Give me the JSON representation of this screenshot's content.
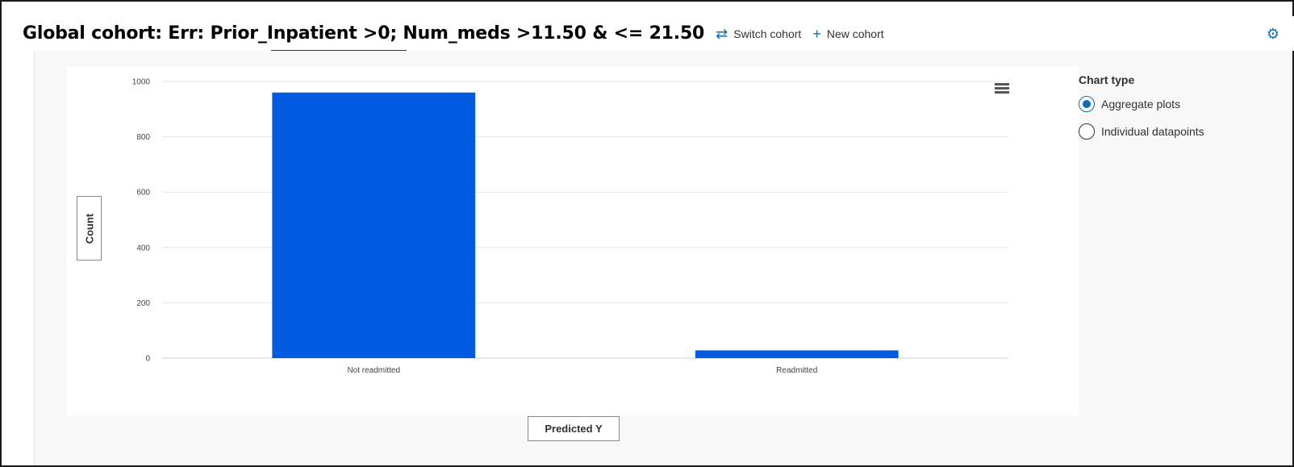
{
  "header": {
    "cohort_title": "Global cohort: Err: Prior_Inpatient >0; Num_meds >11.50 & <= 21.50",
    "switch_cohort_label": "Switch cohort",
    "new_cohort_label": "New cohort",
    "switch_icon": "swap-arrows-icon",
    "new_icon": "plus-icon",
    "settings_icon": "gear-icon"
  },
  "side_panel": {
    "title": "Chart type",
    "options": [
      {
        "label": "Aggregate plots",
        "selected": true
      },
      {
        "label": "Individual datapoints",
        "selected": false
      }
    ]
  },
  "axes": {
    "y_button_label": "Count",
    "x_button_label": "Predicted Y"
  },
  "colors": {
    "bar": "#005be0",
    "accent": "#0f6cbd",
    "grid": "#e6e6e6"
  },
  "chart_data": {
    "type": "bar",
    "categories": [
      "Not readmitted",
      "Readmitted"
    ],
    "values": [
      960,
      28
    ],
    "ylim": [
      0,
      1000
    ],
    "yticks": [
      0,
      200,
      400,
      600,
      800,
      1000
    ],
    "xlabel": "Predicted Y",
    "ylabel": "Count",
    "grid": true
  }
}
